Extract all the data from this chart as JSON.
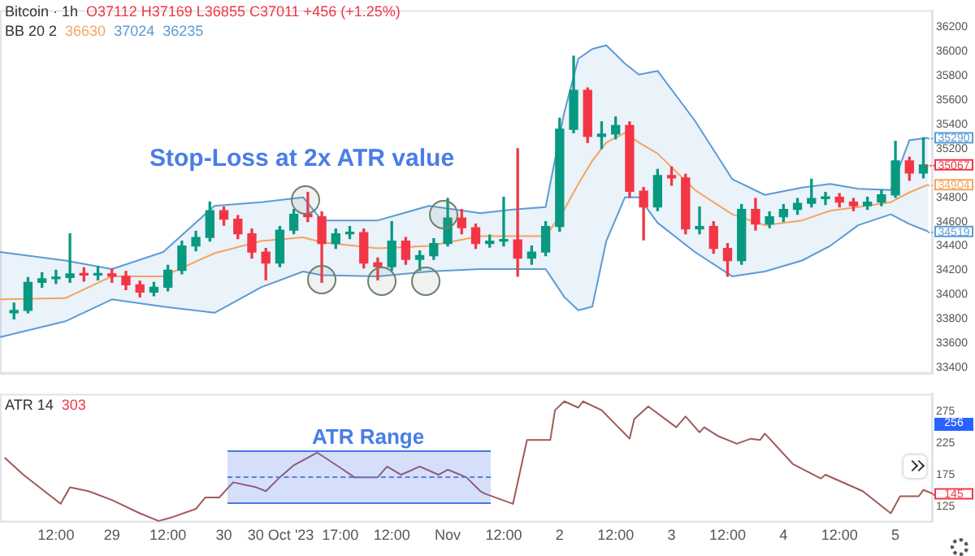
{
  "chart_data": [
    {
      "type": "candlestick",
      "tick_labels": "y",
      "xlim": [
        "2023-10-28T00:00",
        "2023-11-05T08:00"
      ],
      "ylim": [
        33350,
        36340
      ],
      "yticks": [
        33400,
        33600,
        33800,
        34000,
        34200,
        34400,
        34600,
        34800,
        35200,
        35400,
        35600,
        35800,
        36000,
        36200
      ],
      "x": [
        "2023-10-28T03:00",
        "2023-10-28T06:00",
        "2023-10-28T09:00",
        "2023-10-28T12:00",
        "2023-10-28T15:00",
        "2023-10-28T18:00",
        "2023-10-28T21:00",
        "2023-10-29T00:00",
        "2023-10-29T03:00",
        "2023-10-29T06:00",
        "2023-10-29T09:00",
        "2023-10-29T12:00",
        "2023-10-29T15:00",
        "2023-10-29T18:00",
        "2023-10-29T21:00",
        "2023-10-30T00:00",
        "2023-10-30T03:00",
        "2023-10-30T06:00",
        "2023-10-30T09:00",
        "2023-10-30T12:00",
        "2023-10-30T15:00",
        "2023-10-30T18:00",
        "2023-10-30T21:00",
        "2023-10-31T00:00",
        "2023-10-31T03:00",
        "2023-10-31T06:00",
        "2023-10-31T09:00",
        "2023-10-31T12:00",
        "2023-10-31T15:00",
        "2023-10-31T18:00",
        "2023-10-31T21:00",
        "2023-11-01T00:00",
        "2023-11-01T03:00",
        "2023-11-01T06:00",
        "2023-11-01T09:00",
        "2023-11-01T12:00",
        "2023-11-01T15:00",
        "2023-11-01T18:00",
        "2023-11-01T21:00",
        "2023-11-02T00:00",
        "2023-11-02T03:00",
        "2023-11-02T06:00",
        "2023-11-02T09:00",
        "2023-11-02T12:00",
        "2023-11-02T15:00",
        "2023-11-02T18:00",
        "2023-11-02T21:00",
        "2023-11-03T00:00",
        "2023-11-03T03:00",
        "2023-11-03T06:00",
        "2023-11-03T09:00",
        "2023-11-03T12:00",
        "2023-11-03T15:00",
        "2023-11-03T18:00",
        "2023-11-03T21:00",
        "2023-11-04T00:00",
        "2023-11-04T03:00",
        "2023-11-04T06:00",
        "2023-11-04T09:00",
        "2023-11-04T12:00",
        "2023-11-04T15:00",
        "2023-11-04T18:00",
        "2023-11-04T21:00",
        "2023-11-05T00:00",
        "2023-11-05T03:00",
        "2023-11-05T06:00"
      ],
      "ohlc": [
        [
          33850,
          33930,
          33800,
          33870
        ],
        [
          33870,
          34140,
          33850,
          34100
        ],
        [
          34100,
          34180,
          34060,
          34130
        ],
        [
          34130,
          34200,
          34090,
          34140
        ],
        [
          34140,
          34500,
          34100,
          34170
        ],
        [
          34170,
          34220,
          34110,
          34160
        ],
        [
          34160,
          34230,
          34120,
          34170
        ],
        [
          34170,
          34210,
          34100,
          34150
        ],
        [
          34150,
          34190,
          34040,
          34080
        ],
        [
          34080,
          34110,
          33980,
          34020
        ],
        [
          34020,
          34100,
          33990,
          34060
        ],
        [
          34060,
          34240,
          34030,
          34200
        ],
        [
          34200,
          34440,
          34170,
          34400
        ],
        [
          34400,
          34520,
          34360,
          34470
        ],
        [
          34470,
          34760,
          34440,
          34690
        ],
        [
          34690,
          34720,
          34570,
          34620
        ],
        [
          34620,
          34650,
          34460,
          34500
        ],
        [
          34500,
          34540,
          34300,
          34350
        ],
        [
          34350,
          34380,
          34120,
          34260
        ],
        [
          34260,
          34560,
          34230,
          34530
        ],
        [
          34530,
          34700,
          34500,
          34660
        ],
        [
          34660,
          34840,
          34600,
          34640
        ],
        [
          34640,
          34680,
          34100,
          34420
        ],
        [
          34420,
          34540,
          34380,
          34500
        ],
        [
          34500,
          34560,
          34460,
          34510
        ],
        [
          34510,
          34540,
          34220,
          34260
        ],
        [
          34260,
          34300,
          34120,
          34230
        ],
        [
          34230,
          34600,
          34200,
          34440
        ],
        [
          34440,
          34470,
          34250,
          34290
        ],
        [
          34290,
          34360,
          34200,
          34320
        ],
        [
          34320,
          34460,
          34290,
          34420
        ],
        [
          34420,
          34790,
          34400,
          34630
        ],
        [
          34630,
          34700,
          34500,
          34550
        ],
        [
          34550,
          34580,
          34380,
          34420
        ],
        [
          34420,
          34490,
          34390,
          34440
        ],
        [
          34440,
          34800,
          34400,
          34450
        ],
        [
          34450,
          35200,
          34150,
          34300
        ],
        [
          34300,
          34400,
          34250,
          34350
        ],
        [
          34350,
          34600,
          34320,
          34560
        ],
        [
          34560,
          35450,
          34520,
          35360
        ],
        [
          35360,
          35960,
          35330,
          35680
        ],
        [
          35680,
          35700,
          35250,
          35300
        ],
        [
          35300,
          35420,
          35200,
          35320
        ],
        [
          35320,
          35460,
          35280,
          35390
        ],
        [
          35390,
          35420,
          34800,
          34850
        ],
        [
          34850,
          34880,
          34450,
          34720
        ],
        [
          34720,
          35030,
          34690,
          34980
        ],
        [
          34980,
          35050,
          34900,
          34960
        ],
        [
          34960,
          34990,
          34500,
          34540
        ],
        [
          34540,
          34720,
          34500,
          34560
        ],
        [
          34560,
          34600,
          34340,
          34380
        ],
        [
          34380,
          34420,
          34150,
          34280
        ],
        [
          34280,
          34740,
          34250,
          34700
        ],
        [
          34700,
          34790,
          34530,
          34580
        ],
        [
          34580,
          34680,
          34550,
          34640
        ],
        [
          34640,
          34740,
          34600,
          34700
        ],
        [
          34700,
          34790,
          34660,
          34750
        ],
        [
          34750,
          34950,
          34720,
          34790
        ],
        [
          34790,
          34840,
          34740,
          34800
        ],
        [
          34800,
          34830,
          34720,
          34760
        ],
        [
          34760,
          34790,
          34690,
          34730
        ],
        [
          34730,
          34800,
          34700,
          34760
        ],
        [
          34760,
          34860,
          34730,
          34820
        ],
        [
          34820,
          35260,
          34800,
          35100
        ],
        [
          35100,
          35130,
          34940,
          35000
        ],
        [
          35000,
          35290,
          34960,
          35067
        ]
      ],
      "series": [
        {
          "type": "line",
          "color": "#5b9bd5",
          "x": [
            "2023-10-28T00:00",
            "2023-10-28T14:00",
            "2023-10-29T00:00",
            "2023-10-29T11:00",
            "2023-10-29T22:00",
            "2023-10-30T08:00",
            "2023-10-30T17:00",
            "2023-10-30T21:00",
            "2023-10-31T09:00",
            "2023-10-31T20:00",
            "2023-11-01T07:00",
            "2023-11-01T14:00",
            "2023-11-01T21:00",
            "2023-11-02T01:00",
            "2023-11-02T04:00",
            "2023-11-02T07:00",
            "2023-11-02T10:00",
            "2023-11-02T14:00",
            "2023-11-02T17:00",
            "2023-11-02T21:00",
            "2023-11-03T05:00",
            "2023-11-03T13:00",
            "2023-11-03T20:00",
            "2023-11-04T04:00",
            "2023-11-04T10:00",
            "2023-11-04T16:00",
            "2023-11-04T23:00",
            "2023-11-05T03:00",
            "2023-11-05T07:00"
          ],
          "values": [
            34350,
            34280,
            34210,
            34350,
            34730,
            34760,
            34800,
            34610,
            34610,
            34730,
            34670,
            34700,
            34720,
            35500,
            35940,
            36020,
            36050,
            35900,
            35810,
            35840,
            35430,
            34950,
            34820,
            34880,
            34910,
            34870,
            34860,
            35270,
            35290
          ]
        },
        {
          "type": "line",
          "color": "#f7a35c",
          "x": [
            "2023-10-28T00:00",
            "2023-10-28T14:00",
            "2023-10-29T00:00",
            "2023-10-29T11:00",
            "2023-10-29T22:00",
            "2023-10-30T08:00",
            "2023-10-30T17:00",
            "2023-10-30T21:00",
            "2023-10-31T09:00",
            "2023-10-31T20:00",
            "2023-11-01T07:00",
            "2023-11-01T14:00",
            "2023-11-01T21:00",
            "2023-11-02T01:00",
            "2023-11-02T04:00",
            "2023-11-02T07:00",
            "2023-11-02T10:00",
            "2023-11-02T14:00",
            "2023-11-02T17:00",
            "2023-11-02T21:00",
            "2023-11-03T05:00",
            "2023-11-03T13:00",
            "2023-11-03T20:00",
            "2023-11-04T04:00",
            "2023-11-04T10:00",
            "2023-11-04T16:00",
            "2023-11-04T23:00",
            "2023-11-05T03:00",
            "2023-11-05T07:00"
          ],
          "values": [
            33960,
            33970,
            34150,
            34150,
            34340,
            34440,
            34470,
            34430,
            34380,
            34400,
            34480,
            34480,
            34480,
            34700,
            34910,
            35100,
            35250,
            35330,
            35250,
            35160,
            34860,
            34660,
            34570,
            34610,
            34690,
            34720,
            34760,
            34840,
            34904
          ],
          "upper": [
            34350,
            34280,
            34210,
            34350,
            34730,
            34760,
            34800,
            34610,
            34610,
            34730,
            34670,
            34700,
            34720,
            35500,
            35940,
            36020,
            36050,
            35900,
            35810,
            35840,
            35430,
            34950,
            34820,
            34880,
            34910,
            34870,
            34860,
            35270,
            35290
          ],
          "lower": [
            33650,
            33780,
            33960,
            33900,
            33850,
            34060,
            34190,
            34160,
            34150,
            34190,
            34210,
            34210,
            34210,
            33980,
            33870,
            33900,
            34440,
            34800,
            34800,
            34590,
            34350,
            34150,
            34190,
            34280,
            34400,
            34570,
            34660,
            34580,
            34519
          ]
        },
        {
          "type": "line",
          "color": "#5b9bd5",
          "x": [
            "2023-10-28T00:00",
            "2023-10-28T14:00",
            "2023-10-29T00:00",
            "2023-10-29T11:00",
            "2023-10-29T22:00",
            "2023-10-30T08:00",
            "2023-10-30T17:00",
            "2023-10-30T21:00",
            "2023-10-31T09:00",
            "2023-10-31T20:00",
            "2023-11-01T07:00",
            "2023-11-01T14:00",
            "2023-11-01T21:00",
            "2023-11-02T01:00",
            "2023-11-02T04:00",
            "2023-11-02T07:00",
            "2023-11-02T10:00",
            "2023-11-02T14:00",
            "2023-11-02T17:00",
            "2023-11-02T21:00",
            "2023-11-03T05:00",
            "2023-11-03T13:00",
            "2023-11-03T20:00",
            "2023-11-04T04:00",
            "2023-11-04T10:00",
            "2023-11-04T16:00",
            "2023-11-04T23:00",
            "2023-11-05T03:00",
            "2023-11-05T07:00"
          ],
          "values": [
            33650,
            33780,
            33960,
            33900,
            33850,
            34060,
            34190,
            34160,
            34150,
            34190,
            34210,
            34210,
            34210,
            33980,
            33870,
            33900,
            34440,
            34800,
            34800,
            34590,
            34350,
            34150,
            34190,
            34280,
            34400,
            34570,
            34660,
            34580,
            34519
          ]
        }
      ],
      "annotations": [
        "Bitcoin · 1h",
        "O37112 H37169 L36855 C37011 +456 (+1.25%)",
        "BB 20 2",
        "36630",
        "37024",
        "36235",
        "Stop-Loss at 2x ATR value",
        {
          "text": "35290",
          "x": "2023-11-05T07:00",
          "y": 35290
        },
        {
          "text": "35067",
          "x": "2023-11-05T06:00",
          "y": 35067
        },
        {
          "text": "34904",
          "x": "2023-11-05T07:00",
          "y": 34904
        },
        {
          "text": "34519",
          "x": "2023-11-05T07:00",
          "y": 34519
        }
      ]
    },
    {
      "type": "line",
      "xlim": [
        "2023-10-28T00:00",
        "2023-11-05T08:00"
      ],
      "ylim": [
        100,
        303
      ],
      "yticks": [
        125,
        175,
        225,
        275
      ],
      "xticks": [
        {
          "value": "2023-10-28T12:00",
          "label": "12:00"
        },
        {
          "value": "2023-10-29T00:00",
          "label": "29"
        },
        {
          "value": "2023-10-29T12:00",
          "label": "12:00"
        },
        {
          "value": "2023-10-30T00:00",
          "label": "30"
        },
        {
          "value": "2023-10-30T17:00",
          "label": "30 Oct '23  17:00"
        },
        {
          "value": "2023-10-31T12:00",
          "label": "12:00"
        },
        {
          "value": "2023-11-01T00:00",
          "label": "Nov"
        },
        {
          "value": "2023-11-01T12:00",
          "label": "12:00"
        },
        {
          "value": "2023-11-02T00:00",
          "label": "2"
        },
        {
          "value": "2023-11-02T12:00",
          "label": "12:00"
        },
        {
          "value": "2023-11-03T00:00",
          "label": "3"
        },
        {
          "value": "2023-11-03T12:00",
          "label": "12:00"
        },
        {
          "value": "2023-11-04T00:00",
          "label": "4"
        },
        {
          "value": "2023-11-04T12:00",
          "label": "12:00"
        },
        {
          "value": "2023-11-05T00:00",
          "label": "5"
        }
      ],
      "series": [
        {
          "color": "#a05a5a",
          "x": [
            "2023-10-28T01:00",
            "2023-10-28T05:00",
            "2023-10-28T13:00",
            "2023-10-28T15:00",
            "2023-10-28T19:00",
            "2023-10-29T00:00",
            "2023-10-29T06:00",
            "2023-10-29T10:00",
            "2023-10-29T13:00",
            "2023-10-29T18:00",
            "2023-10-29T20:00",
            "2023-10-29T23:00",
            "2023-10-30T02:00",
            "2023-10-30T07:00",
            "2023-10-30T09:00",
            "2023-10-30T12:00",
            "2023-10-30T15:00",
            "2023-10-30T20:00",
            "2023-10-31T01:00",
            "2023-10-31T04:00",
            "2023-10-31T09:00",
            "2023-10-31T11:00",
            "2023-10-31T14:00",
            "2023-10-31T18:00",
            "2023-10-31T22:00",
            "2023-11-01T00:00",
            "2023-11-01T04:00",
            "2023-11-01T07:00",
            "2023-11-01T08:00",
            "2023-11-01T14:00",
            "2023-11-01T17:00",
            "2023-11-01T20:00",
            "2023-11-01T22:00",
            "2023-11-01T23:00",
            "2023-11-02T01:00",
            "2023-11-02T04:00",
            "2023-11-02T05:00",
            "2023-11-02T09:00",
            "2023-11-02T15:00",
            "2023-11-02T16:00",
            "2023-11-02T19:00",
            "2023-11-03T01:00",
            "2023-11-03T03:00",
            "2023-11-03T06:00",
            "2023-11-03T07:00",
            "2023-11-03T10:00",
            "2023-11-03T14:00",
            "2023-11-03T17:00",
            "2023-11-03T19:00",
            "2023-11-03T20:00",
            "2023-11-04T02:00",
            "2023-11-04T08:00",
            "2023-11-04T09:00",
            "2023-11-04T17:00",
            "2023-11-04T23:00",
            "2023-11-05T01:00",
            "2023-11-05T05:00",
            "2023-11-05T06:00",
            "2023-11-05T08:00"
          ],
          "values": [
            202,
            175,
            129,
            155,
            149,
            135,
            114,
            102,
            108,
            121,
            139,
            139,
            163,
            155,
            149,
            171,
            190,
            210,
            186,
            171,
            171,
            188,
            175,
            188,
            175,
            183,
            171,
            149,
            145,
            129,
            230,
            230,
            230,
            277,
            291,
            281,
            291,
            277,
            232,
            263,
            283,
            250,
            267,
            242,
            250,
            236,
            224,
            232,
            230,
            240,
            192,
            169,
            175,
            149,
            114,
            141,
            141,
            151,
            145
          ]
        }
      ],
      "annotations": [
        "ATR 14",
        "303",
        "ATR Range",
        "256",
        {
          "text": "145",
          "x": "2023-11-05T08:00",
          "y": 145
        }
      ]
    }
  ]
}
